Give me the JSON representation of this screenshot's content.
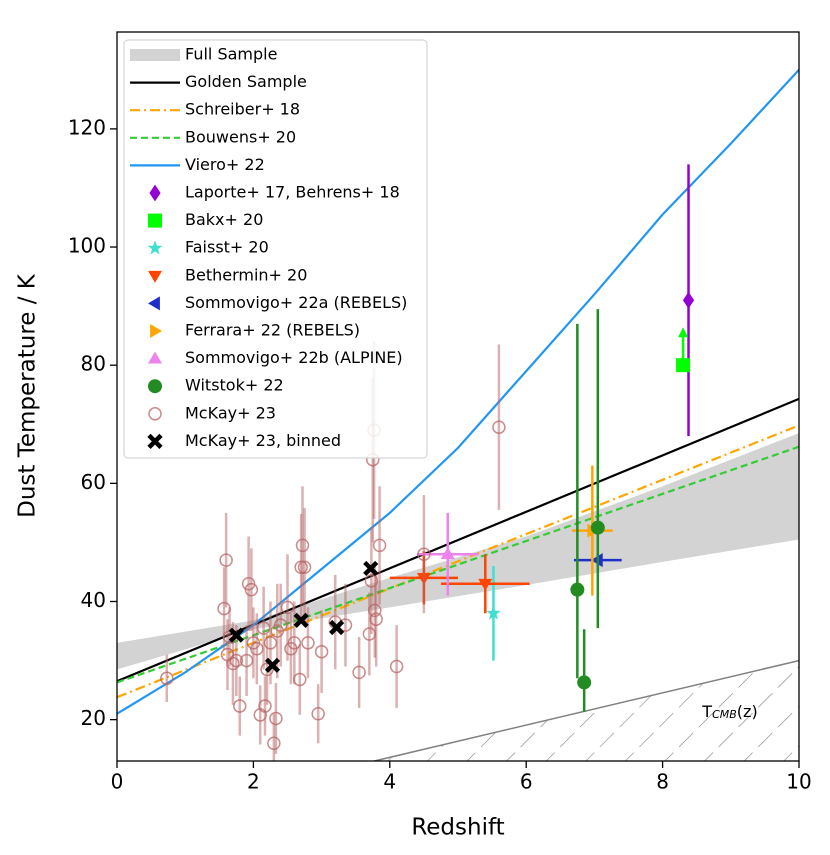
{
  "chart_data": {
    "type": "scatter",
    "xlabel": "Redshift",
    "ylabel": "Dust Temperature / K",
    "xlim": [
      0,
      10
    ],
    "ylim": [
      13,
      136.4
    ],
    "xticks": [
      0,
      2,
      4,
      6,
      8,
      10
    ],
    "yticks": [
      20,
      40,
      60,
      80,
      100,
      120
    ],
    "legend": "upper left",
    "band": {
      "name": "Full Sample",
      "color": "#d3d3d3",
      "x": [
        0,
        2,
        4,
        6,
        8,
        10
      ],
      "lower": [
        28.5,
        35.3,
        39,
        42.8,
        46.7,
        50.5
      ],
      "upper": [
        33,
        36.8,
        44,
        51,
        59.5,
        68.5
      ]
    },
    "lines": [
      {
        "name": "Golden Sample",
        "color": "#000000",
        "style": "solid",
        "x": [
          0,
          10
        ],
        "values": [
          26.5,
          74.3
        ]
      },
      {
        "name": "Schreiber+ 18",
        "color": "#ffa500",
        "style": "dashdot",
        "x": [
          0,
          10
        ],
        "values": [
          23.8,
          69.8
        ]
      },
      {
        "name": "Bouwens+ 20",
        "color": "#32cd32",
        "style": "dashed",
        "x": [
          0,
          10
        ],
        "values": [
          26.3,
          66.2
        ]
      },
      {
        "name": "Viero+ 22",
        "color": "#2196f3",
        "style": "solid",
        "x": [
          0,
          1,
          2,
          3,
          4,
          5,
          6,
          7,
          8,
          9,
          10
        ],
        "values": [
          21,
          28,
          36,
          45.5,
          55,
          66,
          79,
          92,
          105.5,
          117.5,
          130
        ]
      }
    ],
    "series": [
      {
        "name": "Laporte+ 17, Behrens+ 18",
        "color": "#9400d3",
        "marker": "diamond",
        "x": [
          8.38
        ],
        "values": [
          91
        ],
        "yerr": [
          23
        ]
      },
      {
        "name": "Bakx+ 20",
        "color": "#00ff00",
        "marker": "square",
        "x": [
          8.3
        ],
        "values": [
          80
        ],
        "limit": "lower"
      },
      {
        "name": "Faisst+ 20",
        "color": "#40e0d0",
        "marker": "star",
        "x": [
          5.52
        ],
        "values": [
          38
        ],
        "yerr": [
          8
        ]
      },
      {
        "name": "Bethermin+ 20",
        "color": "#ff4500",
        "marker": "triangle-down",
        "x": [
          4.5,
          5.4
        ],
        "values": [
          44,
          43
        ],
        "xerr": [
          0.5,
          0.65
        ],
        "yerr": [
          4.5,
          5
        ]
      },
      {
        "name": "Sommovigo+ 22a (REBELS)",
        "color": "#1f2fcc",
        "marker": "triangle-left",
        "x": [
          7.05
        ],
        "values": [
          47
        ],
        "xerr": [
          0.35
        ],
        "yerr": [
          1
        ]
      },
      {
        "name": "Ferrara+ 22 (REBELS)",
        "color": "#ffa500",
        "marker": "triangle-right",
        "x": [
          6.97
        ],
        "values": [
          52
        ],
        "xerr": [
          0.3
        ],
        "yerr": [
          11
        ]
      },
      {
        "name": "Sommovigo+ 22b (ALPINE)",
        "color": "#ee82ee",
        "marker": "triangle-up",
        "x": [
          4.85
        ],
        "values": [
          48
        ],
        "xerr": [
          0.45
        ],
        "yerr": [
          7
        ]
      },
      {
        "name": "Witstok+ 22",
        "color": "#228b22",
        "marker": "circle",
        "x": [
          6.75,
          6.85,
          7.05
        ],
        "values": [
          42,
          26.3,
          52.5
        ],
        "yerr": [
          [
            15,
            45
          ],
          [
            5,
            9
          ],
          [
            17,
            37
          ]
        ]
      },
      {
        "name": "McKay+ 23",
        "color": "#b86464",
        "marker": "open-circle",
        "x": [
          0.73,
          1.57,
          1.6,
          1.62,
          1.65,
          1.7,
          1.75,
          1.8,
          1.9,
          1.93,
          1.97,
          2.0,
          2.05,
          2.1,
          2.15,
          2.17,
          2.2,
          2.25,
          2.3,
          2.33,
          2.35,
          2.4,
          2.5,
          2.55,
          2.6,
          2.68,
          2.7,
          2.72,
          2.75,
          2.8,
          2.95,
          3.0,
          3.2,
          3.35,
          3.55,
          3.7,
          3.73,
          3.75,
          3.77,
          3.78,
          3.8,
          3.85,
          4.1,
          4.5,
          5.6
        ],
        "values": [
          27,
          38.8,
          47,
          31,
          34,
          29.5,
          30,
          22.3,
          30,
          43,
          42,
          33,
          32,
          20.8,
          35.5,
          22.3,
          28.5,
          33,
          16,
          20.2,
          35,
          36,
          39,
          32,
          33,
          26.8,
          45.8,
          49.5,
          45.8,
          33,
          21,
          31.5,
          36.5,
          36,
          28,
          34.5,
          43.5,
          64,
          69,
          38.5,
          37,
          49.5,
          29,
          48,
          69.5
        ],
        "yerr": [
          4,
          7,
          8,
          6,
          5,
          7,
          6,
          5,
          6,
          8,
          7,
          6,
          6,
          5,
          7,
          5,
          6,
          7,
          5,
          6,
          8,
          7,
          9,
          6,
          7,
          6,
          9,
          10,
          10,
          6,
          5,
          7,
          8,
          7,
          6,
          7,
          9,
          14,
          15,
          8,
          8,
          10,
          7,
          10,
          14
        ]
      },
      {
        "name": "McKay+ 23, binned",
        "color": "#000000",
        "marker": "x",
        "x": [
          1.75,
          2.28,
          2.7,
          3.22,
          3.72
        ],
        "values": [
          34.3,
          29.2,
          36.8,
          35.6,
          45.6
        ]
      }
    ],
    "cmb": {
      "x": [
        3.7,
        10
      ],
      "values": [
        12.8,
        30
      ],
      "color": "#808080"
    },
    "annotation": {
      "text": "T",
      "sub": "CMB",
      "suffix": "(z)"
    }
  }
}
